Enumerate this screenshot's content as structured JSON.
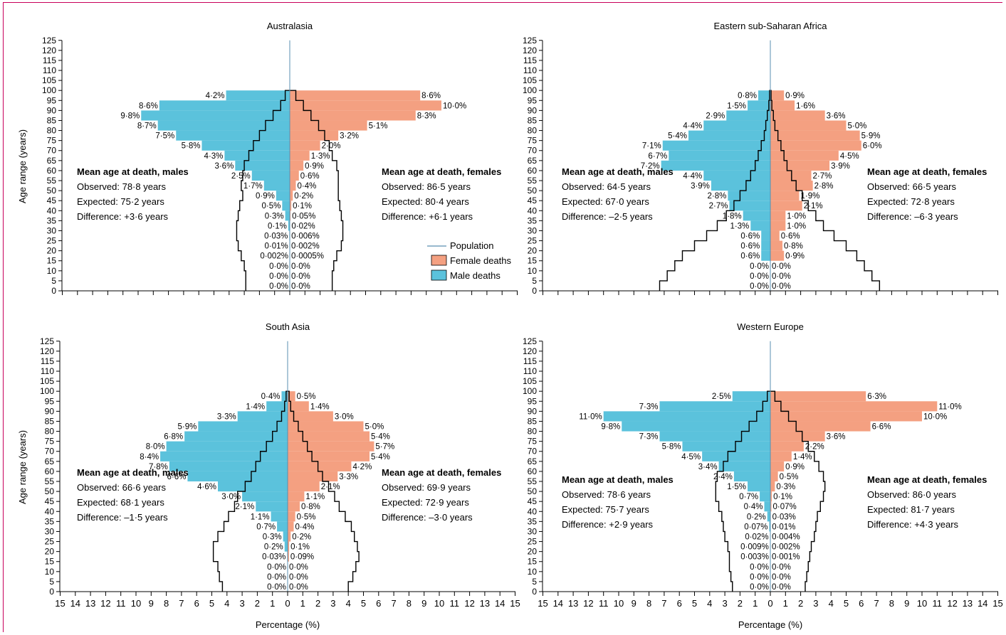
{
  "colors": {
    "male": "#5bc2dc",
    "female": "#f4a081",
    "population": "#000000",
    "axis": "#000000",
    "frame": "#c8005a"
  },
  "legend": {
    "population": "Population",
    "female": "Female deaths",
    "male": "Male deaths"
  },
  "axis_labels": {
    "y": "Age range (years)",
    "x": "Percentage (%)"
  },
  "x_tick_labels": [
    "15",
    "14",
    "13",
    "12",
    "11",
    "10",
    "9",
    "8",
    "7",
    "6",
    "5",
    "4",
    "3",
    "2",
    "1",
    "0",
    "1",
    "2",
    "3",
    "4",
    "5",
    "6",
    "7",
    "8",
    "9",
    "10",
    "11",
    "12",
    "13",
    "14",
    "15"
  ],
  "chart_data": [
    {
      "type": "bar",
      "title": "Australasia",
      "xlabel": "Percentage (%)",
      "ylabel": "Age range (years)",
      "xlim": [
        -15,
        15
      ],
      "ylim": [
        0,
        125
      ],
      "y_ticks": [
        0,
        5,
        10,
        15,
        20,
        25,
        30,
        35,
        40,
        45,
        50,
        55,
        60,
        65,
        70,
        75,
        80,
        85,
        90,
        95,
        100,
        105,
        110,
        115,
        120,
        125
      ],
      "age_bands_start": [
        0,
        5,
        10,
        15,
        20,
        25,
        30,
        35,
        40,
        45,
        50,
        55,
        60,
        65,
        70,
        75,
        80,
        85,
        90,
        95
      ],
      "male_deaths": [
        0.0,
        0.0,
        0.0,
        0.002,
        0.01,
        0.03,
        0.1,
        0.3,
        0.5,
        0.9,
        1.7,
        2.5,
        3.6,
        4.3,
        5.8,
        7.5,
        8.7,
        9.8,
        8.6,
        4.2
      ],
      "female_deaths": [
        0.0,
        0.0,
        0.0,
        0.0005,
        0.002,
        0.006,
        0.02,
        0.05,
        0.1,
        0.2,
        0.4,
        0.6,
        0.9,
        1.3,
        2.0,
        3.2,
        5.1,
        8.3,
        10.0,
        8.6
      ],
      "male_labels": [
        "0·0%",
        "0·0%",
        "0·0%",
        "0·002%",
        "0·01%",
        "0·03%",
        "0·1%",
        "0·3%",
        "0·5%",
        "0·9%",
        "1·7%",
        "2·5%",
        "3·6%",
        "4·3%",
        "5·8%",
        "7·5%",
        "8·7%",
        "9·8%",
        "8·6%",
        "4·2%"
      ],
      "female_labels": [
        "0·0%",
        "0·0%",
        "0·0%",
        "0·0005%",
        "0·002%",
        "0·006%",
        "0·02%",
        "0·05%",
        "0·1%",
        "0·2%",
        "0·4%",
        "0·6%",
        "0·9%",
        "1·3%",
        "2·0%",
        "3·2%",
        "5·1%",
        "8·3%",
        "10·0%",
        "8·6%"
      ],
      "population_male": [
        2.9,
        2.9,
        3.0,
        3.2,
        3.4,
        3.5,
        3.5,
        3.4,
        3.3,
        3.1,
        3.2,
        3.1,
        3.0,
        2.7,
        2.4,
        2.0,
        1.6,
        1.1,
        0.6,
        0.3
      ],
      "population_female": [
        2.8,
        2.8,
        2.9,
        3.1,
        3.4,
        3.5,
        3.5,
        3.4,
        3.3,
        3.2,
        3.2,
        3.2,
        3.1,
        2.8,
        2.6,
        2.3,
        1.9,
        1.4,
        0.9,
        0.4
      ],
      "stats_males": {
        "heading": "Mean age at death, males",
        "observed": "Observed: 78·8 years",
        "expected": "Expected: 75·2 years",
        "difference": "Difference: +3·6 years"
      },
      "stats_females": {
        "heading": "Mean age at death, females",
        "observed": "Observed: 86·5 years",
        "expected": "Expected: 80·4 years",
        "difference": "Difference: +6·1 years"
      },
      "stats_position": "upper",
      "legend": "bottom-right"
    },
    {
      "type": "bar",
      "title": "Eastern sub-Saharan Africa",
      "xlabel": "",
      "ylabel": "",
      "xlim": [
        -15,
        15
      ],
      "ylim": [
        0,
        125
      ],
      "y_ticks": [
        0,
        5,
        10,
        15,
        20,
        25,
        30,
        35,
        40,
        45,
        50,
        55,
        60,
        65,
        70,
        75,
        80,
        85,
        90,
        95,
        100,
        105,
        110,
        115,
        120,
        125
      ],
      "age_bands_start": [
        0,
        5,
        10,
        15,
        20,
        25,
        30,
        35,
        40,
        45,
        50,
        55,
        60,
        65,
        70,
        75,
        80,
        85,
        90,
        95
      ],
      "male_deaths": [
        0.0,
        0.0,
        0.0,
        0.6,
        0.6,
        0.6,
        1.3,
        1.8,
        2.7,
        2.8,
        3.9,
        4.4,
        7.2,
        6.7,
        7.1,
        5.4,
        4.4,
        2.9,
        1.5,
        0.8
      ],
      "female_deaths": [
        0.0,
        0.0,
        0.0,
        0.9,
        0.8,
        0.6,
        1.0,
        1.0,
        2.1,
        1.9,
        2.8,
        2.7,
        3.9,
        4.5,
        6.0,
        5.9,
        5.0,
        3.6,
        1.6,
        0.9
      ],
      "male_labels": [
        "0·0%",
        "0·0%",
        "0·0%",
        "0·6%",
        "0·6%",
        "0·6%",
        "1·3%",
        "1·8%",
        "2·7%",
        "2·8%",
        "3·9%",
        "4·4%",
        "7·2%",
        "6·7%",
        "7·1%",
        "5·4%",
        "4·4%",
        "2·9%",
        "1·5%",
        "0·8%"
      ],
      "female_labels": [
        "0·0%",
        "0·0%",
        "0·0%",
        "0·9%",
        "0·8%",
        "0·6%",
        "1·0%",
        "1·0%",
        "2·1%",
        "1·9%",
        "2·8%",
        "2·7%",
        "3·9%",
        "4·5%",
        "6·0%",
        "5·9%",
        "5·0%",
        "3·6%",
        "1·6%",
        "0·9%"
      ],
      "population_male": [
        7.3,
        6.8,
        6.3,
        5.8,
        5.0,
        4.2,
        3.5,
        2.9,
        2.4,
        2.0,
        1.6,
        1.3,
        1.0,
        0.8,
        0.6,
        0.4,
        0.3,
        0.2,
        0.1,
        0.05
      ],
      "population_female": [
        7.2,
        6.7,
        6.2,
        5.7,
        5.0,
        4.2,
        3.5,
        3.0,
        2.5,
        2.1,
        1.7,
        1.4,
        1.1,
        0.9,
        0.7,
        0.5,
        0.3,
        0.2,
        0.1,
        0.05
      ],
      "stats_males": {
        "heading": "Mean age at death, males",
        "observed": "Observed: 64·5 years",
        "expected": "Expected: 67·0 years",
        "difference": "Difference: –2·5 years"
      },
      "stats_females": {
        "heading": "Mean age at death, females",
        "observed": "Observed: 66·5 years",
        "expected": "Expected: 72·8 years",
        "difference": "Difference: –6·3 years"
      },
      "stats_position": "upper"
    },
    {
      "type": "bar",
      "title": "South Asia",
      "xlabel": "Percentage (%)",
      "ylabel": "Age range (years)",
      "xlim": [
        -15,
        15
      ],
      "ylim": [
        0,
        125
      ],
      "y_ticks": [
        0,
        5,
        10,
        15,
        20,
        25,
        30,
        35,
        40,
        45,
        50,
        55,
        60,
        65,
        70,
        75,
        80,
        85,
        90,
        95,
        100,
        105,
        110,
        115,
        120,
        125
      ],
      "age_bands_start": [
        0,
        5,
        10,
        15,
        20,
        25,
        30,
        35,
        40,
        45,
        50,
        55,
        60,
        65,
        70,
        75,
        80,
        85,
        90,
        95
      ],
      "male_deaths": [
        0.0,
        0.0,
        0.0,
        0.03,
        0.2,
        0.3,
        0.7,
        1.1,
        2.1,
        3.0,
        4.6,
        6.6,
        7.8,
        8.4,
        8.0,
        6.8,
        5.9,
        3.3,
        1.4,
        0.4
      ],
      "female_deaths": [
        0.0,
        0.0,
        0.0,
        0.09,
        0.1,
        0.2,
        0.4,
        0.5,
        0.8,
        1.1,
        2.1,
        3.3,
        4.2,
        5.4,
        5.7,
        5.4,
        5.0,
        3.0,
        1.4,
        0.5
      ],
      "male_labels": [
        "0·0%",
        "0·0%",
        "0·0%",
        "0·03%",
        "0·2%",
        "0·3%",
        "0·7%",
        "1·1%",
        "2·1%",
        "3·0%",
        "4·6%",
        "6·6%",
        "7·8%",
        "8·4%",
        "8·0%",
        "6·8%",
        "5·9%",
        "3·3%",
        "1·4%",
        "0·4%"
      ],
      "female_labels": [
        "0·0%",
        "0·0%",
        "0·0%",
        "0·09%",
        "0·1%",
        "0·2%",
        "0·4%",
        "0·5%",
        "0·8%",
        "1·1%",
        "2·1%",
        "3·3%",
        "4·2%",
        "5·4%",
        "5·7%",
        "5·4%",
        "5·0%",
        "3·0%",
        "1·4%",
        "0·5%"
      ],
      "population_male": [
        4.3,
        4.5,
        4.6,
        4.9,
        4.9,
        4.6,
        4.2,
        3.9,
        3.5,
        3.3,
        2.8,
        2.4,
        2.1,
        1.8,
        1.4,
        1.0,
        0.7,
        0.4,
        0.2,
        0.1
      ],
      "population_female": [
        4.0,
        4.3,
        4.5,
        4.7,
        4.6,
        4.4,
        4.2,
        3.8,
        3.4,
        3.1,
        2.7,
        2.3,
        2.0,
        1.6,
        1.3,
        1.0,
        0.7,
        0.4,
        0.2,
        0.1
      ],
      "stats_males": {
        "heading": "Mean age at death, males",
        "observed": "Observed: 66·6 years",
        "expected": "Expected: 68·1 years",
        "difference": "Difference: –1·5 years"
      },
      "stats_females": {
        "heading": "Mean age at death, females",
        "observed": "Observed: 69·9 years",
        "expected": "Expected: 72·9 years",
        "difference": "Difference: –3·0 years"
      },
      "stats_position": "upper"
    },
    {
      "type": "bar",
      "title": "Western Europe",
      "xlabel": "Percentage (%)",
      "ylabel": "",
      "xlim": [
        -15,
        15
      ],
      "ylim": [
        0,
        125
      ],
      "y_ticks": [
        0,
        5,
        10,
        15,
        20,
        25,
        30,
        35,
        40,
        45,
        50,
        55,
        60,
        65,
        70,
        75,
        80,
        85,
        90,
        95,
        100,
        105,
        110,
        115,
        120,
        125
      ],
      "age_bands_start": [
        0,
        5,
        10,
        15,
        20,
        25,
        30,
        35,
        40,
        45,
        50,
        55,
        60,
        65,
        70,
        75,
        80,
        85,
        90,
        95
      ],
      "male_deaths": [
        0.0,
        0.0,
        0.0,
        0.003,
        0.009,
        0.02,
        0.07,
        0.2,
        0.4,
        0.7,
        1.5,
        2.4,
        3.4,
        4.5,
        5.8,
        7.3,
        9.8,
        11.0,
        7.3,
        2.5
      ],
      "female_deaths": [
        0.0,
        0.0,
        0.0,
        0.001,
        0.002,
        0.004,
        0.01,
        0.03,
        0.07,
        0.1,
        0.3,
        0.5,
        0.9,
        1.4,
        2.2,
        3.6,
        6.6,
        10.0,
        11.0,
        6.3
      ],
      "male_labels": [
        "0·0%",
        "0·0%",
        "0·0%",
        "0·003%",
        "0·009%",
        "0·02%",
        "0·07%",
        "0·2%",
        "0·4%",
        "0·7%",
        "1·5%",
        "2·4%",
        "3·4%",
        "4·5%",
        "5·8%",
        "7·3%",
        "9·8%",
        "11·0%",
        "7·3%",
        "2·5%"
      ],
      "female_labels": [
        "0·0%",
        "0·0%",
        "0·0%",
        "0·001%",
        "0·002%",
        "0·004%",
        "0·01%",
        "0·03%",
        "0·07%",
        "0·1%",
        "0·3%",
        "0·5%",
        "0·9%",
        "1·4%",
        "2·2%",
        "3·6%",
        "6·6%",
        "10·0%",
        "11·0%",
        "6·3%"
      ],
      "population_male": [
        2.5,
        2.6,
        2.7,
        2.7,
        2.8,
        3.0,
        3.1,
        3.2,
        3.4,
        3.6,
        3.6,
        3.5,
        3.1,
        2.8,
        2.3,
        1.9,
        1.4,
        0.9,
        0.5,
        0.2
      ],
      "population_female": [
        2.3,
        2.4,
        2.5,
        2.6,
        2.7,
        2.9,
        3.0,
        3.1,
        3.3,
        3.5,
        3.6,
        3.5,
        3.2,
        2.9,
        2.5,
        2.1,
        1.7,
        1.2,
        0.7,
        0.3
      ],
      "stats_males": {
        "heading": "Mean age at death, males",
        "observed": "Observed: 78·6 years",
        "expected": "Expected: 75·7 years",
        "difference": "Difference: +2·9 years"
      },
      "stats_females": {
        "heading": "Mean age at death, females",
        "observed": "Observed: 86·0 years",
        "expected": "Expected: 81·7 years",
        "difference": "Difference: +4·3 years"
      },
      "stats_position": "lower"
    }
  ]
}
